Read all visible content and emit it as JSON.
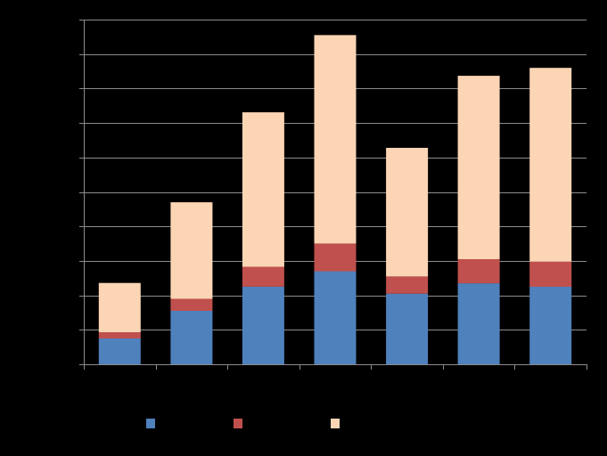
{
  "chart_data": {
    "type": "bar",
    "stacked": true,
    "title": "",
    "xlabel": "",
    "ylabel": "",
    "categories": [
      "",
      "",
      "",
      "",
      "",
      "",
      ""
    ],
    "ylim": [
      0,
      100
    ],
    "grid": true,
    "legend_position": "bottom",
    "series": [
      {
        "name": "",
        "color": "#4F81BD",
        "values": [
          7.5,
          15.5,
          22.5,
          27,
          20.5,
          23.5,
          22.5
        ]
      },
      {
        "name": "",
        "color": "#C0504D",
        "values": [
          1.8,
          3.5,
          5.8,
          8,
          5,
          7,
          7.3
        ]
      },
      {
        "name": "",
        "color": "#FCD5B5",
        "values": [
          14.3,
          28,
          44.8,
          60.5,
          37.3,
          53.2,
          56.2
        ]
      }
    ]
  }
}
